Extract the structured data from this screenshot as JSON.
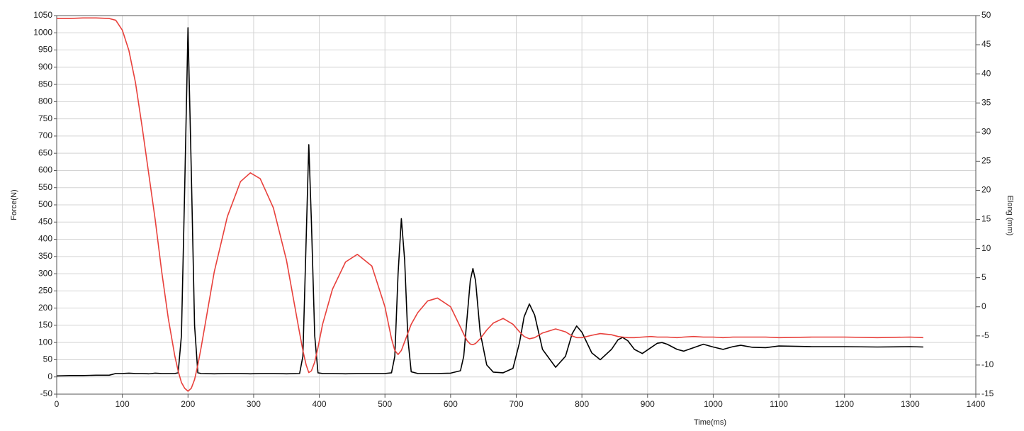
{
  "chart_data": {
    "type": "line",
    "xlabel": "Time(ms)",
    "ylabel": "Force(N)",
    "y2label": "Elong (mm)",
    "x": [
      0,
      20,
      40,
      60,
      80,
      90,
      100,
      110,
      120,
      130,
      140,
      150,
      160,
      170,
      180,
      185,
      190,
      195,
      200,
      205,
      210,
      215,
      220,
      240,
      260,
      280,
      295,
      310,
      330,
      350,
      370,
      375,
      380,
      384,
      388,
      393,
      398,
      405,
      420,
      440,
      458,
      480,
      500,
      510,
      515,
      520,
      525,
      530,
      535,
      540,
      550,
      565,
      580,
      600,
      615,
      620,
      625,
      630,
      634,
      638,
      645,
      655,
      665,
      680,
      695,
      705,
      712,
      720,
      728,
      740,
      760,
      775,
      785,
      792,
      800,
      815,
      828,
      845,
      855,
      862,
      870,
      880,
      892,
      905,
      915,
      922,
      930,
      945,
      955,
      970,
      985,
      1000,
      1015,
      1030,
      1042,
      1060,
      1080,
      1100,
      1150,
      1200,
      1250,
      1300,
      1320
    ],
    "series": [
      {
        "color": "#000000",
        "values": [
          3,
          4,
          4,
          5,
          5,
          10,
          10,
          11,
          10,
          10,
          9,
          11,
          10,
          10,
          10,
          12,
          120,
          550,
          1015,
          600,
          150,
          12,
          10,
          9,
          10,
          10,
          9,
          10,
          10,
          9,
          10,
          60,
          400,
          675,
          450,
          120,
          12,
          10,
          10,
          9,
          10,
          10,
          10,
          12,
          60,
          300,
          460,
          340,
          110,
          15,
          10,
          10,
          10,
          11,
          18,
          60,
          170,
          280,
          315,
          280,
          130,
          35,
          14,
          12,
          25,
          100,
          175,
          212,
          180,
          80,
          28,
          60,
          125,
          148,
          130,
          70,
          50,
          80,
          108,
          115,
          105,
          80,
          68,
          85,
          98,
          100,
          95,
          80,
          75,
          85,
          95,
          87,
          80,
          88,
          92,
          86,
          85,
          90,
          88,
          88,
          87,
          88,
          87
        ]
      },
      {
        "color": "#e8413c",
        "axis": "y2",
        "values": [
          49.5,
          49.5,
          49.6,
          49.6,
          49.5,
          49.2,
          47.5,
          44,
          38.5,
          31,
          23,
          15,
          6,
          -2,
          -8.5,
          -11,
          -13,
          -14,
          -14.5,
          -14,
          -12.5,
          -10,
          -7,
          6,
          15.5,
          21.5,
          23,
          22,
          17,
          8,
          -4.5,
          -7.5,
          -10,
          -11.3,
          -11,
          -9.5,
          -7,
          -3,
          3,
          7.7,
          9,
          7,
          0,
          -5.5,
          -7.5,
          -8.2,
          -7.5,
          -6,
          -4.5,
          -3,
          -1,
          1,
          1.5,
          0,
          -3.5,
          -4.7,
          -5.8,
          -6.4,
          -6.5,
          -6.3,
          -5.5,
          -4,
          -2.8,
          -2,
          -3,
          -4.3,
          -5.1,
          -5.5,
          -5.3,
          -4.5,
          -3.8,
          -4.3,
          -5,
          -5.3,
          -5.3,
          -4.9,
          -4.6,
          -4.8,
          -5.1,
          -5.2,
          -5.3,
          -5.3,
          -5.2,
          -5.1,
          -5.2,
          -5.2,
          -5.2,
          -5.3,
          -5.2,
          -5.1,
          -5.2,
          -5.2,
          -5.3,
          -5.2,
          -5.2,
          -5.2,
          -5.2,
          -5.3,
          -5.2,
          -5.2,
          -5.3,
          -5.2,
          -5.3
        ]
      }
    ],
    "xlim": [
      0,
      1400
    ],
    "xticks": [
      0,
      100,
      200,
      300,
      400,
      500,
      600,
      700,
      800,
      900,
      1000,
      1100,
      1200,
      1300,
      1400
    ],
    "ylim": [
      -50,
      1050
    ],
    "yticks": [
      -50,
      0,
      50,
      100,
      150,
      200,
      250,
      300,
      350,
      400,
      450,
      500,
      550,
      600,
      650,
      700,
      750,
      800,
      850,
      900,
      950,
      1000,
      1050
    ],
    "y2lim": [
      -15,
      50
    ],
    "y2ticks": [
      -15,
      -10,
      -5,
      0,
      5,
      10,
      15,
      20,
      25,
      30,
      35,
      40,
      45,
      50
    ],
    "grid": true
  }
}
